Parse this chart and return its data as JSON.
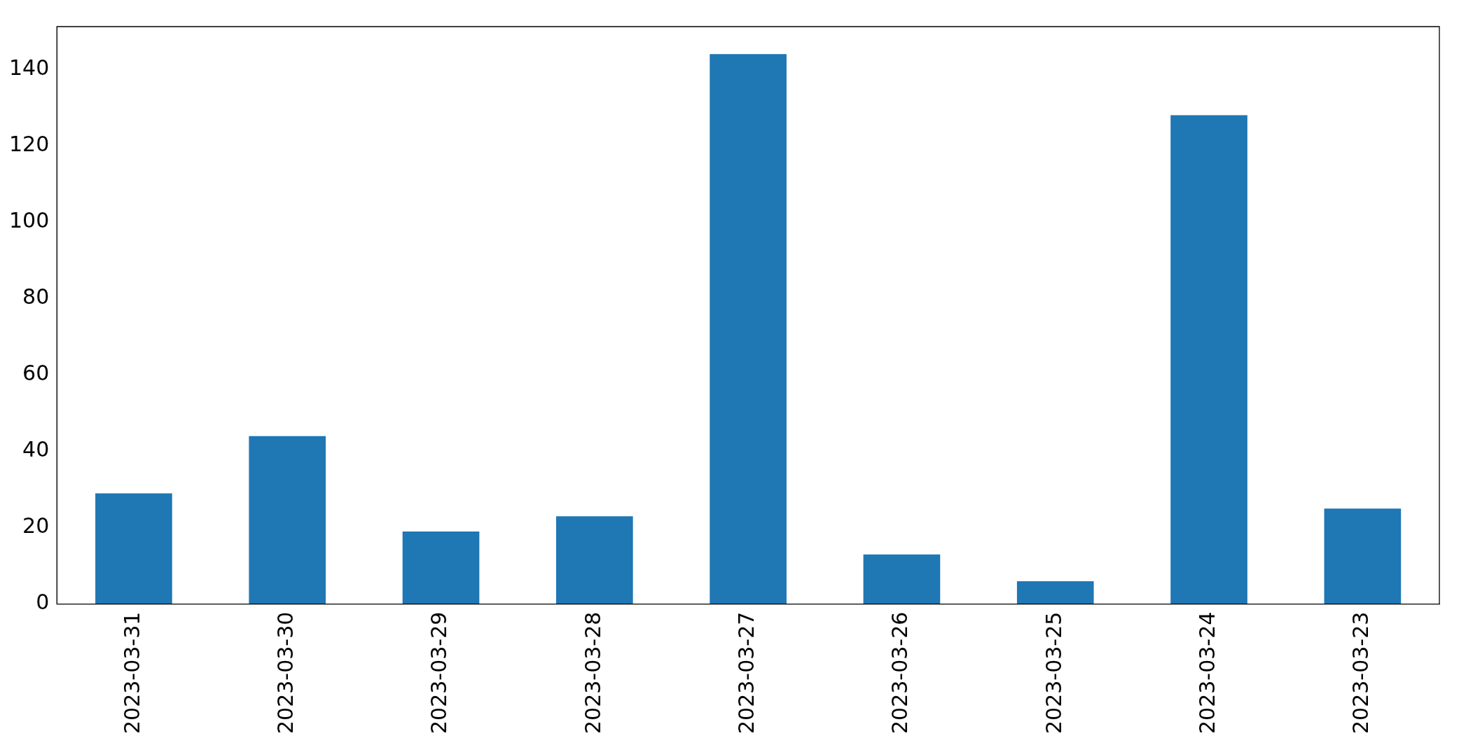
{
  "chart_data": {
    "type": "bar",
    "categories": [
      "2023-03-31",
      "2023-03-30",
      "2023-03-29",
      "2023-03-28",
      "2023-03-27",
      "2023-03-26",
      "2023-03-25",
      "2023-03-24",
      "2023-03-23"
    ],
    "values": [
      29,
      44,
      19,
      23,
      144,
      13,
      6,
      128,
      25
    ],
    "color": "#1f77b4",
    "ylim": [
      0,
      151.2
    ],
    "yticks": [
      0,
      20,
      40,
      60,
      80,
      100,
      120,
      140
    ],
    "grid": false,
    "legend": false
  }
}
